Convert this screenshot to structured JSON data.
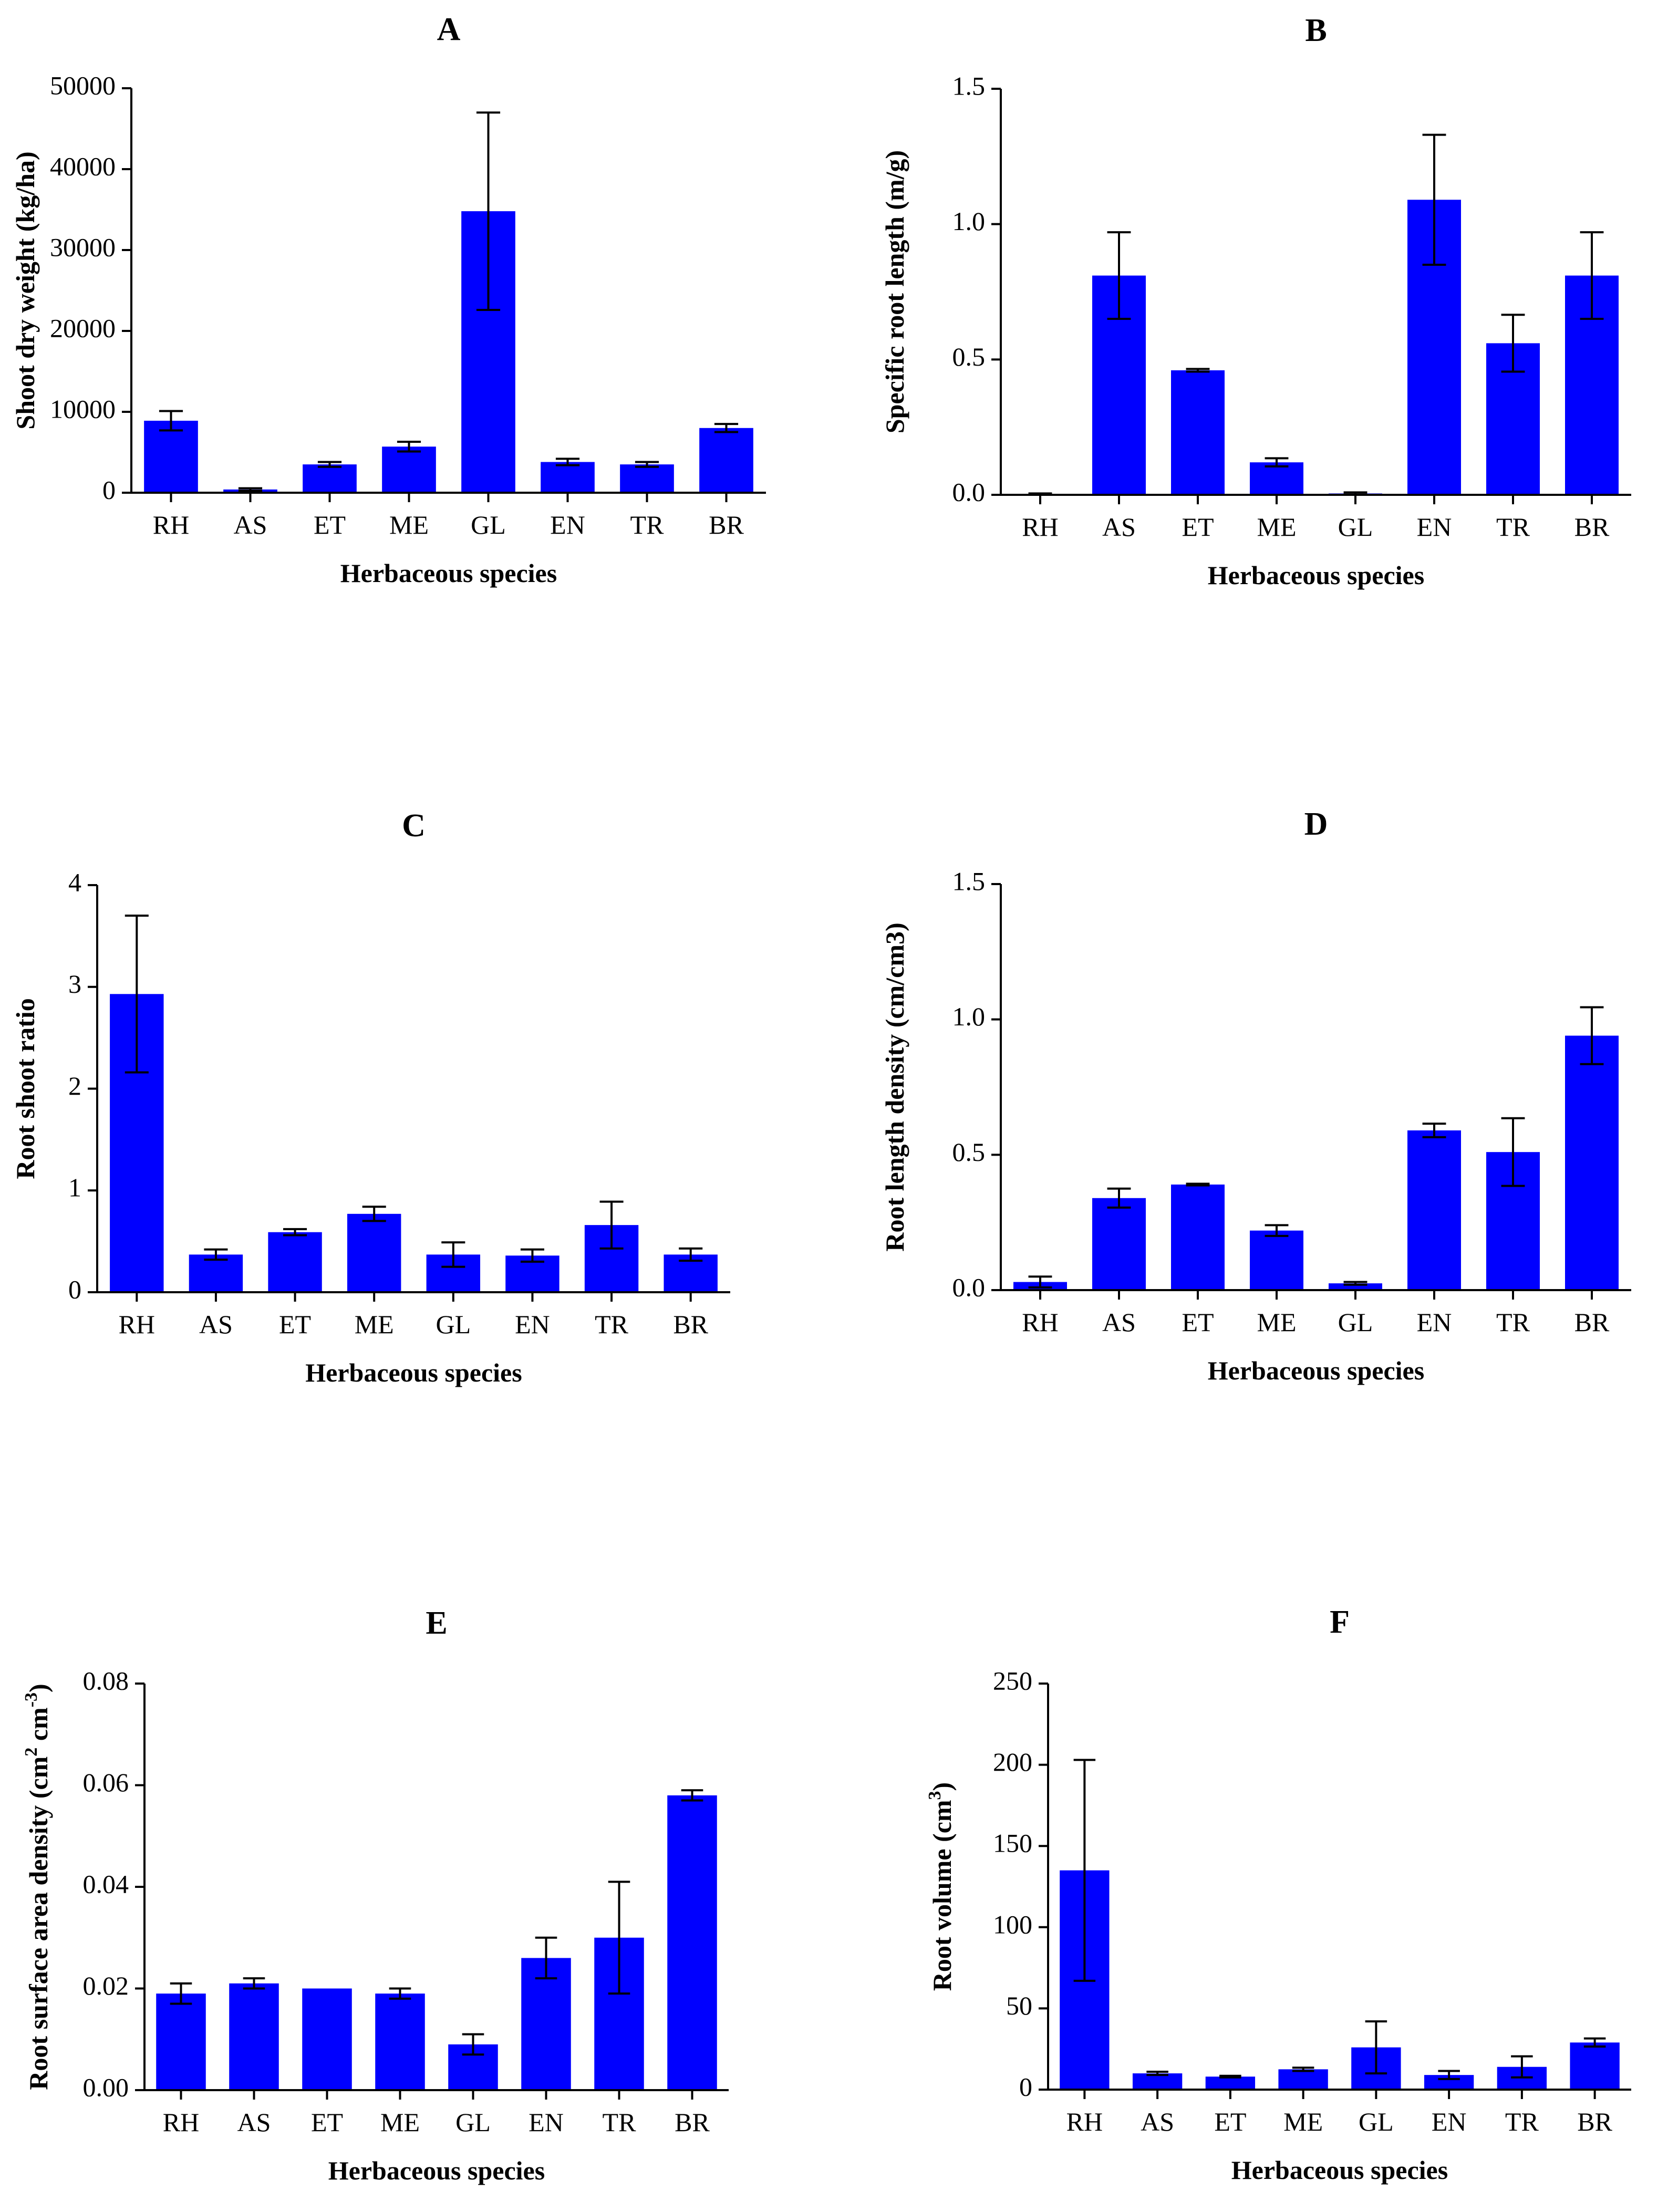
{
  "figure": {
    "bar_color": "#0000ff",
    "axis_color": "#000000",
    "error_bar_color": "#000000"
  },
  "chart_data": [
    {
      "panel": "A",
      "type": "bar",
      "title": "A",
      "categories": [
        "RH",
        "AS",
        "ET",
        "ME",
        "GL",
        "EN",
        "TR",
        "BR"
      ],
      "values": [
        8900,
        400,
        3500,
        5700,
        34800,
        3800,
        3500,
        8000
      ],
      "errors": [
        1200,
        150,
        300,
        600,
        12200,
        400,
        300,
        500
      ],
      "xlabel": "Herbaceous species",
      "ylabel": "Shoot dry weight  (kg/ha)",
      "ylim": [
        0,
        50000
      ],
      "yticks": [
        0,
        10000,
        20000,
        30000,
        40000,
        50000
      ],
      "ytick_labels": [
        "0",
        "10000",
        "20000",
        "30000",
        "40000",
        "50000"
      ],
      "grid": false
    },
    {
      "panel": "B",
      "type": "bar",
      "title": "B",
      "categories": [
        "RH",
        "AS",
        "ET",
        "ME",
        "GL",
        "EN",
        "TR",
        "BR"
      ],
      "values": [
        0.002,
        0.81,
        0.46,
        0.12,
        0.005,
        1.09,
        0.56,
        0.81
      ],
      "errors": [
        0.003,
        0.16,
        0.005,
        0.015,
        0.004,
        0.24,
        0.105,
        0.16
      ],
      "xlabel": "Herbaceous species",
      "ylabel": "Specific root length (m/g)",
      "ylim": [
        0,
        1.5
      ],
      "yticks": [
        0,
        0.5,
        1.0,
        1.5
      ],
      "ytick_labels": [
        "0.0",
        "0.5",
        "1.0",
        "1.5"
      ],
      "grid": false
    },
    {
      "panel": "C",
      "type": "bar",
      "title": "C",
      "categories": [
        "RH",
        "AS",
        "ET",
        "ME",
        "GL",
        "EN",
        "TR",
        "BR"
      ],
      "values": [
        2.93,
        0.37,
        0.59,
        0.77,
        0.37,
        0.36,
        0.66,
        0.37
      ],
      "errors": [
        0.77,
        0.05,
        0.03,
        0.07,
        0.12,
        0.06,
        0.23,
        0.06
      ],
      "xlabel": "Herbaceous species",
      "ylabel": "Root shoot ratio",
      "ylim": [
        0,
        4
      ],
      "yticks": [
        0,
        1,
        2,
        3,
        4
      ],
      "ytick_labels": [
        "0",
        "1",
        "2",
        "3",
        "4"
      ],
      "grid": false
    },
    {
      "panel": "D",
      "type": "bar",
      "title": "D",
      "categories": [
        "RH",
        "AS",
        "ET",
        "ME",
        "GL",
        "EN",
        "TR",
        "BR"
      ],
      "values": [
        0.03,
        0.34,
        0.39,
        0.22,
        0.025,
        0.59,
        0.51,
        0.94
      ],
      "errors": [
        0.02,
        0.035,
        0.003,
        0.02,
        0.005,
        0.025,
        0.125,
        0.105
      ],
      "xlabel": "Herbaceous species",
      "ylabel": "Root length density (cm/cm3)",
      "ylim": [
        0,
        1.5
      ],
      "yticks": [
        0,
        0.5,
        1.0,
        1.5
      ],
      "ytick_labels": [
        "0.0",
        "0.5",
        "1.0",
        "1.5"
      ],
      "grid": false
    },
    {
      "panel": "E",
      "type": "bar",
      "title": "E",
      "categories": [
        "RH",
        "AS",
        "ET",
        "ME",
        "GL",
        "EN",
        "TR",
        "BR"
      ],
      "values": [
        0.019,
        0.021,
        0.02,
        0.019,
        0.009,
        0.026,
        0.03,
        0.058
      ],
      "errors": [
        0.002,
        0.001,
        0.0,
        0.001,
        0.002,
        0.004,
        0.011,
        0.001
      ],
      "xlabel": "Herbaceous species",
      "ylabel_parts": [
        "Root surface area density (cm",
        "2",
        " cm",
        "-3",
        ")"
      ],
      "ylim": [
        0,
        0.08
      ],
      "yticks": [
        0,
        0.02,
        0.04,
        0.06,
        0.08
      ],
      "ytick_labels": [
        "0.00",
        "0.02",
        "0.04",
        "0.06",
        "0.08"
      ],
      "grid": false
    },
    {
      "panel": "F",
      "type": "bar",
      "title": "F",
      "categories": [
        "RH",
        "AS",
        "ET",
        "ME",
        "GL",
        "EN",
        "TR",
        "BR"
      ],
      "values": [
        135,
        10,
        8,
        12.5,
        26,
        9,
        14,
        29
      ],
      "errors": [
        68,
        1,
        0.5,
        1,
        16,
        2.5,
        6.5,
        2.5
      ],
      "xlabel": "Herbaceous species",
      "ylabel_parts": [
        "Root volume (cm",
        "3",
        ")"
      ],
      "ylim": [
        0,
        250
      ],
      "yticks": [
        0,
        50,
        100,
        150,
        200,
        250
      ],
      "ytick_labels": [
        "0",
        "50",
        "100",
        "150",
        "200",
        "250"
      ],
      "grid": false
    }
  ]
}
